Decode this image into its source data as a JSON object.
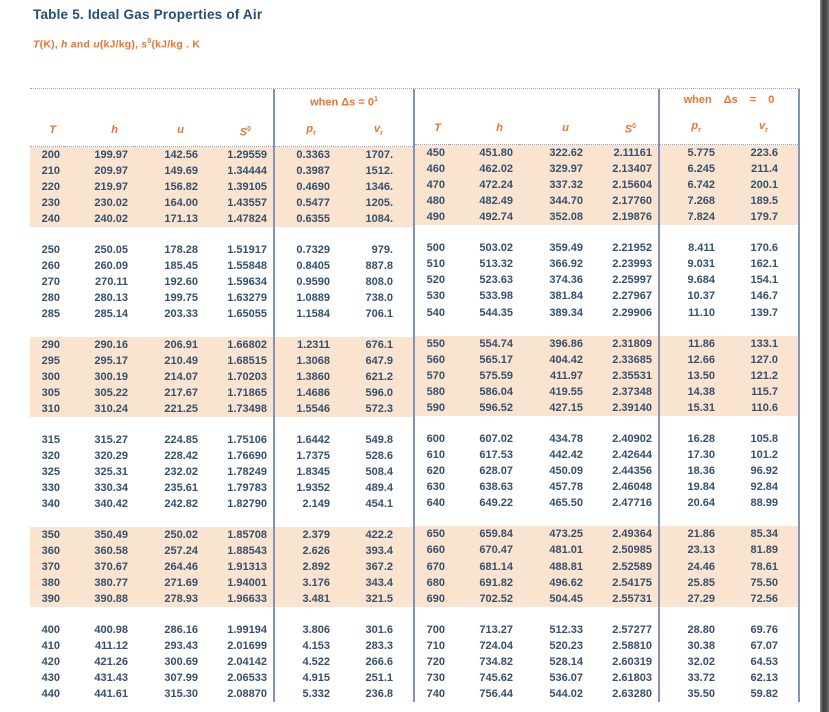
{
  "colors": {
    "title_blue": "#1f4e79",
    "accent_orange": "#e8742e",
    "data_text": "#35506f",
    "band_peach": "#fbe4cf",
    "divider_blue": "#8193b8"
  },
  "title": "Table 5. Ideal Gas Properties of Air",
  "subtitle_parts": [
    {
      "t": "T",
      "i": true
    },
    {
      "t": "(K), "
    },
    {
      "t": "h",
      "i": true
    },
    {
      "t": " and "
    },
    {
      "t": "u",
      "i": true
    },
    {
      "t": "(kJ/kg), "
    },
    {
      "t": "s",
      "i": true
    },
    {
      "t": "0",
      "sup": true
    },
    {
      "t": "(kJ/kg . K"
    }
  ],
  "table": {
    "when_left": {
      "text": "when Δs = 0",
      "sup": "1"
    },
    "when_right": {
      "text": "when Δs = 0",
      "sup": ""
    },
    "columns": [
      {
        "base": "T"
      },
      {
        "base": "h"
      },
      {
        "base": "u"
      },
      {
        "base": "S",
        "sup": "0"
      },
      {
        "base": "p",
        "sub": "r"
      },
      {
        "base": "v",
        "sub": "r"
      }
    ],
    "left_groups": [
      [
        [
          "200",
          "199.97",
          "142.56",
          "1.29559",
          "0.3363",
          "1707."
        ],
        [
          "210",
          "209.97",
          "149.69",
          "1.34444",
          "0.3987",
          "1512."
        ],
        [
          "220",
          "219.97",
          "156.82",
          "1.39105",
          "0.4690",
          "1346."
        ],
        [
          "230",
          "230.02",
          "164.00",
          "1.43557",
          "0.5477",
          "1205."
        ],
        [
          "240",
          "240.02",
          "171.13",
          "1.47824",
          "0.6355",
          "1084."
        ]
      ],
      [
        [
          "250",
          "250.05",
          "178.28",
          "1.51917",
          "0.7329",
          "979."
        ],
        [
          "260",
          "260.09",
          "185.45",
          "1.55848",
          "0.8405",
          "887.8"
        ],
        [
          "270",
          "270.11",
          "192.60",
          "1.59634",
          "0.9590",
          "808.0"
        ],
        [
          "280",
          "280.13",
          "199.75",
          "1.63279",
          "1.0889",
          "738.0"
        ],
        [
          "285",
          "285.14",
          "203.33",
          "1.65055",
          "1.1584",
          "706.1"
        ]
      ],
      [
        [
          "290",
          "290.16",
          "206.91",
          "1.66802",
          "1.2311",
          "676.1"
        ],
        [
          "295",
          "295.17",
          "210.49",
          "1.68515",
          "1.3068",
          "647.9"
        ],
        [
          "300",
          "300.19",
          "214.07",
          "1.70203",
          "1.3860",
          "621.2"
        ],
        [
          "305",
          "305.22",
          "217.67",
          "1.71865",
          "1.4686",
          "596.0"
        ],
        [
          "310",
          "310.24",
          "221.25",
          "1.73498",
          "1.5546",
          "572.3"
        ]
      ],
      [
        [
          "315",
          "315.27",
          "224.85",
          "1.75106",
          "1.6442",
          "549.8"
        ],
        [
          "320",
          "320.29",
          "228.42",
          "1.76690",
          "1.7375",
          "528.6"
        ],
        [
          "325",
          "325.31",
          "232.02",
          "1.78249",
          "1.8345",
          "508.4"
        ],
        [
          "330",
          "330.34",
          "235.61",
          "1.79783",
          "1.9352",
          "489.4"
        ],
        [
          "340",
          "340.42",
          "242.82",
          "1.82790",
          "2.149",
          "454.1"
        ]
      ],
      [
        [
          "350",
          "350.49",
          "250.02",
          "1.85708",
          "2.379",
          "422.2"
        ],
        [
          "360",
          "360.58",
          "257.24",
          "1.88543",
          "2.626",
          "393.4"
        ],
        [
          "370",
          "370.67",
          "264.46",
          "1.91313",
          "2.892",
          "367.2"
        ],
        [
          "380",
          "380.77",
          "271.69",
          "1.94001",
          "3.176",
          "343.4"
        ],
        [
          "390",
          "390.88",
          "278.93",
          "1.96633",
          "3.481",
          "321.5"
        ]
      ],
      [
        [
          "400",
          "400.98",
          "286.16",
          "1.99194",
          "3.806",
          "301.6"
        ],
        [
          "410",
          "411.12",
          "293.43",
          "2.01699",
          "4.153",
          "283.3"
        ],
        [
          "420",
          "421.26",
          "300.69",
          "2.04142",
          "4.522",
          "266.6"
        ],
        [
          "430",
          "431.43",
          "307.99",
          "2.06533",
          "4.915",
          "251.1"
        ],
        [
          "440",
          "441.61",
          "315.30",
          "2.08870",
          "5.332",
          "236.8"
        ]
      ]
    ],
    "right_groups": [
      [
        [
          "450",
          "451.80",
          "322.62",
          "2.11161",
          "5.775",
          "223.6"
        ],
        [
          "460",
          "462.02",
          "329.97",
          "2.13407",
          "6.245",
          "211.4"
        ],
        [
          "470",
          "472.24",
          "337.32",
          "2.15604",
          "6.742",
          "200.1"
        ],
        [
          "480",
          "482.49",
          "344.70",
          "2.17760",
          "7.268",
          "189.5"
        ],
        [
          "490",
          "492.74",
          "352.08",
          "2.19876",
          "7.824",
          "179.7"
        ]
      ],
      [
        [
          "500",
          "503.02",
          "359.49",
          "2.21952",
          "8.411",
          "170.6"
        ],
        [
          "510",
          "513.32",
          "366.92",
          "2.23993",
          "9.031",
          "162.1"
        ],
        [
          "520",
          "523.63",
          "374.36",
          "2.25997",
          "9.684",
          "154.1"
        ],
        [
          "530",
          "533.98",
          "381.84",
          "2.27967",
          "10.37",
          "146.7"
        ],
        [
          "540",
          "544.35",
          "389.34",
          "2.29906",
          "11.10",
          "139.7"
        ]
      ],
      [
        [
          "550",
          "554.74",
          "396.86",
          "2.31809",
          "11.86",
          "133.1"
        ],
        [
          "560",
          "565.17",
          "404.42",
          "2.33685",
          "12.66",
          "127.0"
        ],
        [
          "570",
          "575.59",
          "411.97",
          "2.35531",
          "13.50",
          "121.2"
        ],
        [
          "580",
          "586.04",
          "419.55",
          "2.37348",
          "14.38",
          "115.7"
        ],
        [
          "590",
          "596.52",
          "427.15",
          "2.39140",
          "15.31",
          "110.6"
        ]
      ],
      [
        [
          "600",
          "607.02",
          "434.78",
          "2.40902",
          "16.28",
          "105.8"
        ],
        [
          "610",
          "617.53",
          "442.42",
          "2.42644",
          "17.30",
          "101.2"
        ],
        [
          "620",
          "628.07",
          "450.09",
          "2.44356",
          "18.36",
          "96.92"
        ],
        [
          "630",
          "638.63",
          "457.78",
          "2.46048",
          "19.84",
          "92.84"
        ],
        [
          "640",
          "649.22",
          "465.50",
          "2.47716",
          "20.64",
          "88.99"
        ]
      ],
      [
        [
          "650",
          "659.84",
          "473.25",
          "2.49364",
          "21.86",
          "85.34"
        ],
        [
          "660",
          "670.47",
          "481.01",
          "2.50985",
          "23.13",
          "81.89"
        ],
        [
          "670",
          "681.14",
          "488.81",
          "2.52589",
          "24.46",
          "78.61"
        ],
        [
          "680",
          "691.82",
          "496.62",
          "2.54175",
          "25.85",
          "75.50"
        ],
        [
          "690",
          "702.52",
          "504.45",
          "2.55731",
          "27.29",
          "72.56"
        ]
      ],
      [
        [
          "700",
          "713.27",
          "512.33",
          "2.57277",
          "28.80",
          "69.76"
        ],
        [
          "710",
          "724.04",
          "520.23",
          "2.58810",
          "30.38",
          "67.07"
        ],
        [
          "720",
          "734.82",
          "528.14",
          "2.60319",
          "32.02",
          "64.53"
        ],
        [
          "730",
          "745.62",
          "536.07",
          "2.61803",
          "33.72",
          "62.13"
        ],
        [
          "740",
          "756.44",
          "544.02",
          "2.63280",
          "35.50",
          "59.82"
        ]
      ]
    ]
  }
}
